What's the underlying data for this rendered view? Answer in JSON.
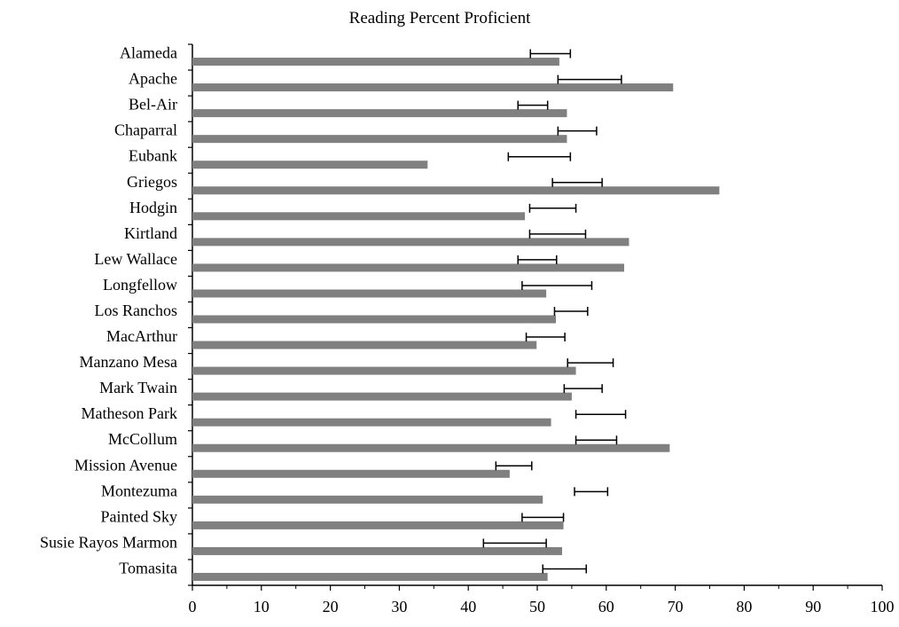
{
  "chart_data": {
    "type": "bar",
    "orientation": "horizontal",
    "title": "Reading Percent Proficient",
    "xlabel": "",
    "ylabel": "",
    "xlim": [
      0,
      100
    ],
    "x_ticks": [
      0,
      10,
      20,
      30,
      40,
      50,
      60,
      70,
      80,
      90,
      100
    ],
    "grid": false,
    "legend": "none",
    "categories": [
      "Alameda",
      "Apache",
      "Bel-Air",
      "Chaparral",
      "Eubank",
      "Griegos",
      "Hodgin",
      "Kirtland",
      "Lew Wallace",
      "Longfellow",
      "Los Ranchos",
      "MacArthur",
      "Manzano Mesa",
      "Mark Twain",
      "Matheson Park",
      "McCollum",
      "Mission Avenue",
      "Montezuma",
      "Painted Sky",
      "Susie Rayos Marmon",
      "Tomasita"
    ],
    "values": [
      53.2,
      69.7,
      54.3,
      54.3,
      34.1,
      76.4,
      48.2,
      63.3,
      62.6,
      51.3,
      52.7,
      49.9,
      55.6,
      55.0,
      52.0,
      69.2,
      46.0,
      50.8,
      53.8,
      53.6,
      51.5
    ],
    "intervals": [
      [
        49.0,
        54.8
      ],
      [
        53.0,
        62.2
      ],
      [
        47.2,
        51.5
      ],
      [
        53.0,
        58.6
      ],
      [
        45.8,
        54.8
      ],
      [
        52.2,
        59.4
      ],
      [
        48.9,
        55.6
      ],
      [
        48.9,
        57.0
      ],
      [
        47.2,
        52.8
      ],
      [
        47.8,
        57.9
      ],
      [
        52.5,
        57.3
      ],
      [
        48.4,
        54.0
      ],
      [
        54.4,
        61.0
      ],
      [
        53.9,
        59.4
      ],
      [
        55.6,
        62.8
      ],
      [
        55.6,
        61.5
      ],
      [
        44.0,
        49.2
      ],
      [
        55.4,
        60.2
      ],
      [
        47.8,
        53.8
      ],
      [
        42.2,
        51.3
      ],
      [
        50.8,
        57.1
      ]
    ],
    "colors": {
      "bar": "#808080",
      "error_bar": "#000000",
      "axis": "#000000"
    }
  }
}
